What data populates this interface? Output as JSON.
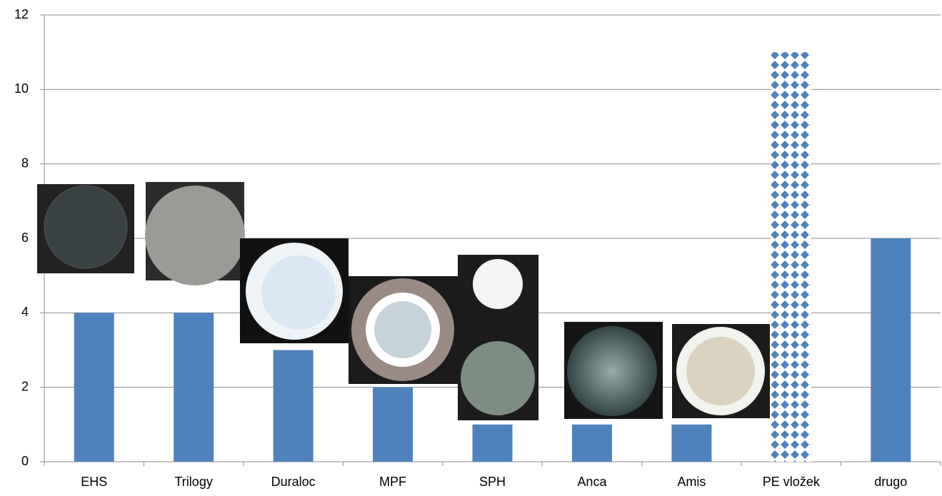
{
  "chart_data": {
    "type": "bar",
    "categories": [
      "EHS",
      "Trilogy",
      "Duraloc",
      "MPF",
      "SPH",
      "Anca",
      "Amis",
      "PE vložek",
      "drugo"
    ],
    "values": [
      4,
      4,
      3,
      2,
      1,
      1,
      1,
      11,
      6
    ],
    "color": "#4f81bd",
    "bar_fill": [
      "solid",
      "solid",
      "solid",
      "solid",
      "solid",
      "solid",
      "solid",
      "diamonds",
      "solid"
    ],
    "ylim": [
      0,
      12
    ],
    "yticks": [
      0,
      2,
      4,
      6,
      8,
      10,
      12
    ],
    "grid": true
  }
}
